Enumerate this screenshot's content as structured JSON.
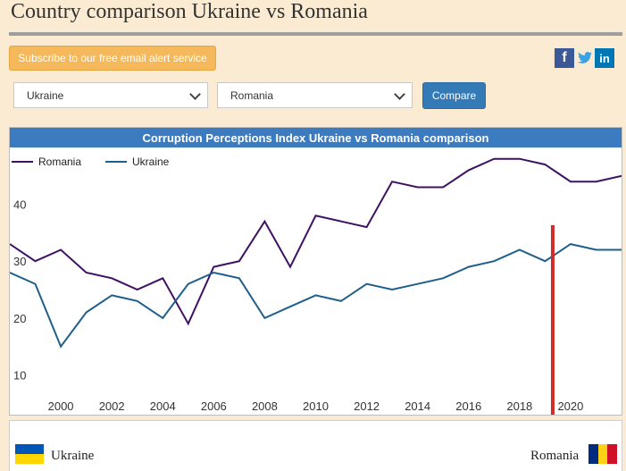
{
  "page": {
    "title": "Country comparison Ukraine vs Romania"
  },
  "subscribe": {
    "label": "Subscribe to our free email alert service"
  },
  "social": {
    "facebook": "f",
    "twitter": "t",
    "linkedin": "in"
  },
  "form": {
    "country1": "Ukraine",
    "country2": "Romania",
    "compare_label": "Compare"
  },
  "colors": {
    "romania": "#3f1163",
    "ukraine": "#1f5f8b",
    "marker": "#d12c2c",
    "header": "#3c7bbf"
  },
  "chart_data": {
    "type": "line",
    "title": "Corruption Perceptions Index Ukraine vs Romania comparison",
    "x": [
      1998,
      1999,
      2000,
      2001,
      2002,
      2003,
      2004,
      2005,
      2006,
      2007,
      2008,
      2009,
      2010,
      2011,
      2012,
      2013,
      2014,
      2015,
      2016,
      2017,
      2018,
      2019,
      2020,
      2021,
      2022
    ],
    "series": [
      {
        "name": "Romania",
        "values": [
          33,
          30,
          32,
          28,
          27,
          25,
          27,
          19,
          29,
          30,
          37,
          29,
          38,
          37,
          36,
          44,
          43,
          43,
          46,
          48,
          48,
          47,
          44,
          44,
          45
        ]
      },
      {
        "name": "Ukraine",
        "values": [
          28,
          26,
          15,
          21,
          24,
          23,
          20,
          26,
          28,
          27,
          20,
          22,
          24,
          23,
          26,
          25,
          26,
          27,
          29,
          30,
          32,
          30,
          33,
          32,
          32
        ]
      }
    ],
    "x_ticks": [
      "2000",
      "2002",
      "2004",
      "2006",
      "2008",
      "2010",
      "2012",
      "2014",
      "2016",
      "2018",
      "2020"
    ],
    "y_ticks": [
      "10",
      "20",
      "30",
      "40"
    ],
    "legend_position": "top-left",
    "marker_year": 2019.3,
    "xlim": [
      1998,
      2022
    ],
    "ylim": [
      3,
      50
    ],
    "grid": false
  },
  "footer": {
    "left_label": "Ukraine",
    "right_label": "Romania"
  }
}
